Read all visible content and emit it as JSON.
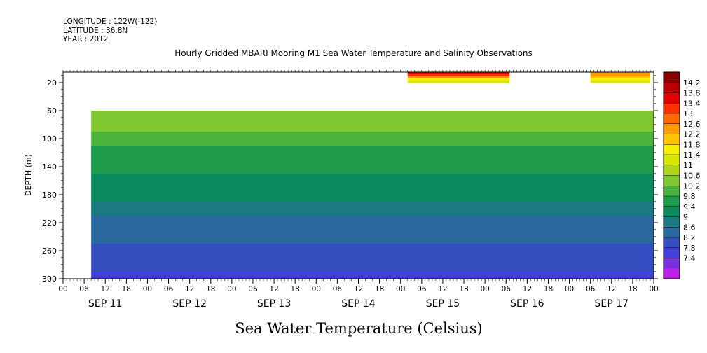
{
  "header": {
    "longitude": "LONGITUDE : 122W(-122)",
    "latitude": "LATITUDE : 36.8N",
    "year": "YEAR : 2012"
  },
  "chart_data": {
    "type": "heatmap",
    "title": "Hourly Gridded MBARI Mooring M1 Sea Water Temperature and Salinity Observations",
    "xlabel": "",
    "ylabel": "DEPTH (m)",
    "colorbar_label": "Sea Water Temperature (Celsius)",
    "y_inverted": true,
    "ylim": [
      5,
      300
    ],
    "yticks": [
      20,
      60,
      100,
      140,
      180,
      220,
      260,
      300
    ],
    "x_hour_ticks": [
      "00",
      "06",
      "12",
      "18",
      "00",
      "06",
      "12",
      "18",
      "00",
      "06",
      "12",
      "18",
      "00",
      "06",
      "12",
      "18",
      "00",
      "06",
      "12",
      "18",
      "00",
      "06",
      "12",
      "18",
      "00",
      "06",
      "12",
      "18",
      "00"
    ],
    "x_day_labels": [
      "SEP 11",
      "SEP 12",
      "SEP 13",
      "SEP 14",
      "SEP 15",
      "SEP 16",
      "SEP 17"
    ],
    "x_range_hours": [
      0,
      168
    ],
    "color_levels": [
      "14.2",
      "13.8",
      "13.4",
      "13",
      "12.6",
      "12.2",
      "11.8",
      "11.4",
      "11",
      "10.6",
      "10.2",
      "9.8",
      "9.4",
      "9",
      "8.6",
      "8.2",
      "7.8",
      "7.4"
    ],
    "colors": [
      "#8a0000",
      "#b80000",
      "#e00000",
      "#ff3000",
      "#ff6a00",
      "#ff9a00",
      "#ffc400",
      "#f6ee00",
      "#d8e600",
      "#aed61e",
      "#80c832",
      "#4cb43c",
      "#1e9c4a",
      "#0a8c5e",
      "#1c7b82",
      "#2a6a9e",
      "#3450c0",
      "#4440d8",
      "#7a30e0",
      "#c020e8"
    ],
    "depth_levels": [
      60,
      80,
      100,
      120,
      140,
      160,
      180,
      200,
      220,
      240,
      260,
      280,
      300
    ],
    "profile_temperature_deg_c": [
      11.0,
      10.7,
      10.4,
      10.1,
      9.9,
      9.7,
      9.5,
      9.2,
      9.0,
      8.8,
      8.5,
      8.3,
      8.0
    ],
    "near_surface_segments": [
      {
        "start_hour": 98,
        "end_hour": 127,
        "depth_top": 5,
        "depth_bottom": 20,
        "temperature_range": [
          11.5,
          14.2
        ]
      },
      {
        "start_hour": 150,
        "end_hour": 167,
        "depth_top": 5,
        "depth_bottom": 20,
        "temperature_range": [
          11.5,
          13.0
        ]
      }
    ],
    "data_gaps": [
      {
        "start_hour": 0,
        "end_hour": 8,
        "depth_top": 5,
        "depth_bottom": 300
      },
      {
        "start_hour": 8,
        "end_hour": 168,
        "depth_top": 20,
        "depth_bottom": 60
      }
    ]
  }
}
